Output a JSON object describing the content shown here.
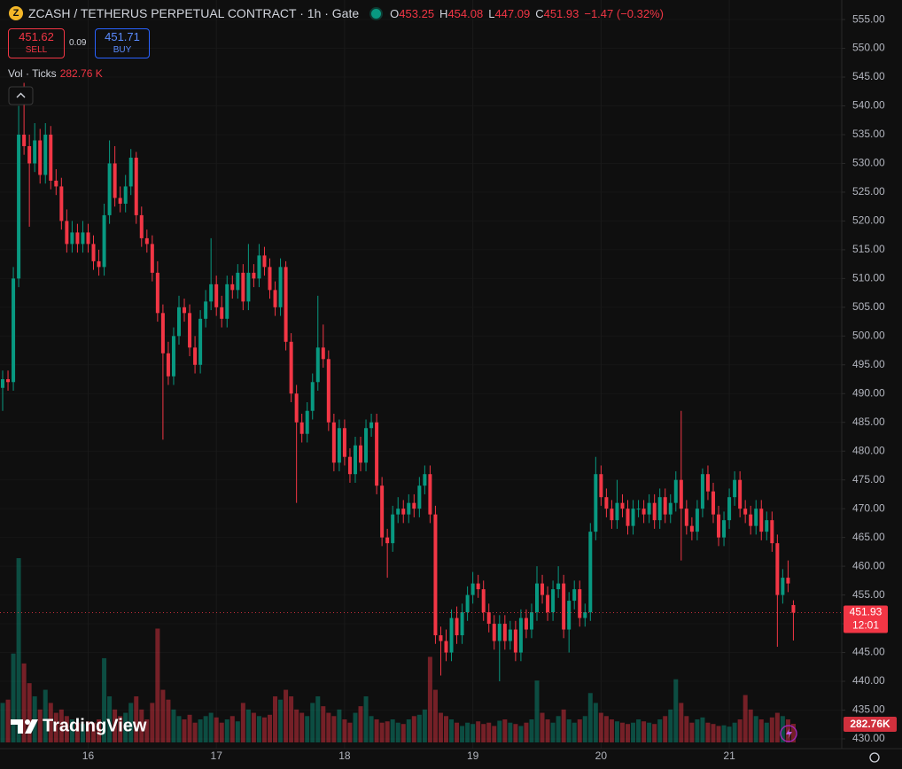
{
  "chart_data": {
    "type": "candlestick",
    "title": "ZCASH / TETHERUS PERPETUAL CONTRACT · 1h · Gate",
    "ohlc_labels": [
      "O",
      "H",
      "L",
      "C"
    ],
    "change": "−1.47 (−0.32%)",
    "volume_title": "Vol · Ticks",
    "volume_label": "282.76 K",
    "volume_tag": "282.76K",
    "countdown": "12:01",
    "up_color": "#089981",
    "down_color": "#f23645",
    "grid": true,
    "categories": [
      null,
      null,
      null,
      null,
      null,
      null,
      null,
      null,
      null,
      null,
      null,
      null,
      null,
      null,
      null,
      null,
      "16",
      null,
      null,
      null,
      null,
      null,
      null,
      null,
      null,
      null,
      null,
      null,
      null,
      null,
      null,
      null,
      null,
      null,
      null,
      null,
      null,
      null,
      null,
      null,
      "17",
      null,
      null,
      null,
      null,
      null,
      null,
      null,
      null,
      null,
      null,
      null,
      null,
      null,
      null,
      null,
      null,
      null,
      null,
      null,
      null,
      null,
      null,
      null,
      "18",
      null,
      null,
      null,
      null,
      null,
      null,
      null,
      null,
      null,
      null,
      null,
      null,
      null,
      null,
      null,
      null,
      null,
      null,
      null,
      null,
      null,
      null,
      null,
      "19",
      null,
      null,
      null,
      null,
      null,
      null,
      null,
      null,
      null,
      null,
      null,
      null,
      null,
      null,
      null,
      null,
      null,
      null,
      null,
      null,
      null,
      null,
      null,
      "20",
      null,
      null,
      null,
      null,
      null,
      null,
      null,
      null,
      null,
      null,
      null,
      null,
      null,
      null,
      null,
      null,
      null,
      null,
      null,
      null,
      null,
      null,
      null,
      "21",
      null,
      null,
      null,
      null,
      null,
      null,
      null,
      null,
      null,
      null,
      null,
      null
    ],
    "open": [
      491,
      492.5,
      492,
      510,
      535,
      533,
      530,
      534,
      528,
      535,
      527,
      526,
      520,
      516,
      518,
      516,
      518,
      516,
      513,
      512,
      521,
      530,
      524,
      523,
      526,
      531,
      521,
      517,
      516,
      511,
      504,
      497,
      493,
      500,
      505,
      504,
      498,
      495,
      503,
      506,
      509,
      505,
      503,
      509,
      508,
      511,
      506,
      511,
      510,
      514,
      512,
      508,
      505,
      512,
      499,
      490,
      485,
      483,
      487,
      492,
      498,
      496,
      485,
      478,
      484,
      479,
      476,
      481,
      478,
      484,
      485,
      474,
      465,
      464,
      469,
      470,
      469,
      471,
      470,
      474,
      476,
      469,
      448,
      447,
      445,
      451,
      448,
      452,
      455,
      457,
      456,
      452,
      450,
      447,
      450,
      447,
      449,
      445,
      451,
      449,
      452,
      457,
      455,
      452,
      456,
      457,
      449,
      454,
      456,
      451,
      452,
      466,
      476,
      472,
      470,
      468,
      471,
      470,
      467,
      470,
      470,
      469,
      471,
      468,
      472,
      469,
      471,
      475,
      470,
      467,
      466,
      470,
      476,
      473,
      469,
      465,
      468,
      472,
      475,
      470,
      469,
      467,
      470,
      466,
      468,
      464,
      455,
      458,
      453.25
    ],
    "high": [
      494,
      494,
      512,
      540,
      544,
      535,
      537,
      536,
      537,
      536.5,
      529,
      527.5,
      522,
      520,
      519.5,
      520,
      519.5,
      517.5,
      515,
      523,
      534,
      533,
      526,
      528,
      532.5,
      532,
      522.5,
      518.5,
      517.5,
      513,
      505.5,
      499,
      501.5,
      507,
      506.5,
      505.5,
      500,
      504.5,
      508,
      517,
      510.5,
      507,
      510.5,
      510.5,
      512.5,
      512.5,
      516,
      512.5,
      516,
      515.5,
      513.5,
      509.5,
      513.5,
      513,
      500.5,
      491.5,
      486.5,
      488.5,
      493.5,
      507,
      502,
      497.5,
      486.5,
      485.5,
      485.5,
      480.5,
      482.5,
      482.5,
      485.5,
      486.5,
      486.5,
      475.5,
      466.5,
      470.5,
      472,
      471.5,
      472.5,
      472.5,
      475.5,
      477.5,
      477.5,
      470.5,
      449.5,
      449,
      452.5,
      453,
      453.5,
      456.5,
      459,
      458.5,
      457.5,
      453.5,
      451.5,
      451.5,
      451.5,
      450.5,
      450.5,
      452.5,
      452.5,
      453.5,
      460,
      458.5,
      456.5,
      457.5,
      460,
      458.5,
      455.5,
      457.5,
      457.5,
      453.5,
      467.5,
      479,
      477.5,
      473.5,
      471.5,
      475,
      472.5,
      471.5,
      471.5,
      471.5,
      471.5,
      472.5,
      472.5,
      473.5,
      473.5,
      472.5,
      476.5,
      487,
      471.5,
      468.5,
      471.5,
      477,
      477.5,
      474.5,
      470.5,
      469.5,
      473.5,
      476.5,
      476.5,
      471.5,
      470.5,
      471.5,
      471.5,
      469.5,
      469.5,
      465.5,
      459.5,
      461,
      454.08
    ],
    "low": [
      487,
      490.5,
      490.5,
      508.5,
      531.5,
      519,
      528.5,
      526.5,
      526.5,
      525.5,
      524.5,
      518.5,
      514.5,
      514.5,
      514.5,
      514.5,
      514.5,
      511.5,
      510.5,
      510.5,
      519.5,
      522.5,
      521.5,
      521.5,
      524.5,
      519.5,
      515.5,
      514.5,
      509.5,
      502.5,
      482,
      491.5,
      491.5,
      498.5,
      502.5,
      496.5,
      493.5,
      493.5,
      501.5,
      504.5,
      503.5,
      501.5,
      501.5,
      506.5,
      506.5,
      504.5,
      504.5,
      508.5,
      508.5,
      510.5,
      506.5,
      503.5,
      503.5,
      497.5,
      488.5,
      471,
      481.5,
      481.5,
      485.5,
      490.5,
      494.5,
      483.5,
      476.5,
      476.5,
      477.5,
      474.5,
      474.5,
      476.5,
      476.5,
      482.5,
      472.5,
      463.5,
      458,
      462.5,
      467.5,
      467.5,
      467.5,
      468.5,
      468.5,
      472.5,
      467.5,
      446.5,
      441,
      443.5,
      443.5,
      446.5,
      446.5,
      450.5,
      453.5,
      454.5,
      450.5,
      448.5,
      445.5,
      440,
      445.5,
      445.5,
      443.5,
      443.5,
      447.5,
      447.5,
      450.5,
      453.5,
      450.5,
      450.5,
      454.5,
      447.5,
      445,
      452.5,
      449.5,
      449.5,
      450.5,
      464.5,
      470.5,
      468.5,
      466.5,
      466.5,
      468.5,
      465.5,
      465.5,
      468.5,
      467.5,
      467.5,
      466.5,
      466.5,
      467.5,
      467.5,
      469.5,
      461,
      465.5,
      464.5,
      464.5,
      468.5,
      471.5,
      467.5,
      463.5,
      463.5,
      466.5,
      470.5,
      468.5,
      467.5,
      465.5,
      465.5,
      464.5,
      464.5,
      462.5,
      446,
      453.5,
      455.5,
      447.09
    ],
    "close": [
      492.5,
      492,
      510,
      535,
      533,
      530,
      534,
      528,
      535,
      527,
      526,
      520,
      516,
      518,
      516,
      518,
      516,
      513,
      512,
      521,
      530,
      524,
      523,
      526,
      531,
      521,
      517,
      516,
      511,
      504,
      497,
      493,
      500,
      505,
      504,
      498,
      495,
      503,
      506,
      509,
      505,
      503,
      509,
      508,
      511,
      506,
      511,
      510,
      514,
      512,
      508,
      505,
      512,
      499,
      490,
      485,
      483,
      487,
      492,
      498,
      496,
      485,
      478,
      484,
      479,
      476,
      481,
      478,
      484,
      485,
      474,
      465,
      464,
      469,
      470,
      469,
      471,
      470,
      474,
      476,
      469,
      448,
      447,
      445,
      451,
      448,
      452,
      455,
      457,
      456,
      452,
      450,
      447,
      450,
      447,
      449,
      445,
      451,
      449,
      452,
      457,
      455,
      452,
      456,
      457,
      449,
      454,
      456,
      451,
      452,
      466,
      476,
      472,
      470,
      468,
      471,
      470,
      467,
      470,
      470,
      469,
      471,
      468,
      472,
      469,
      471,
      475,
      470,
      467,
      466,
      470,
      476,
      473,
      469,
      465,
      468,
      472,
      475,
      470,
      469,
      467,
      470,
      466,
      468,
      464,
      455,
      458,
      457,
      451.93
    ],
    "volume": [
      600,
      650,
      1350,
      2800,
      1200,
      900,
      700,
      500,
      800,
      600,
      450,
      500,
      400,
      350,
      300,
      280,
      320,
      300,
      350,
      1280,
      700,
      500,
      400,
      450,
      600,
      700,
      500,
      350,
      600,
      1730,
      800,
      650,
      500,
      400,
      350,
      420,
      300,
      350,
      400,
      450,
      380,
      300,
      350,
      400,
      320,
      600,
      500,
      450,
      400,
      380,
      420,
      700,
      650,
      800,
      700,
      500,
      450,
      400,
      600,
      700,
      550,
      450,
      400,
      500,
      350,
      300,
      450,
      550,
      700,
      400,
      350,
      300,
      320,
      350,
      300,
      280,
      350,
      400,
      420,
      500,
      1300,
      800,
      450,
      400,
      350,
      300,
      250,
      300,
      280,
      320,
      280,
      300,
      250,
      330,
      350,
      300,
      280,
      250,
      300,
      350,
      940,
      450,
      350,
      300,
      400,
      500,
      350,
      300,
      350,
      400,
      750,
      600,
      450,
      400,
      350,
      320,
      300,
      280,
      300,
      350,
      320,
      300,
      280,
      350,
      400,
      500,
      960,
      600,
      400,
      300,
      350,
      380,
      300,
      280,
      250,
      260,
      240,
      300,
      350,
      720,
      500,
      400,
      350,
      300,
      380,
      450,
      400,
      350,
      282.76
    ],
    "ylim": [
      428.3,
      558.4
    ],
    "yticks": [
      {
        "value": 430,
        "label": "430.00"
      },
      {
        "value": 435,
        "label": "435.00"
      },
      {
        "value": 440,
        "label": "440.00"
      },
      {
        "value": 445,
        "label": "445.00"
      },
      {
        "value": 450,
        "label": "450.00"
      },
      {
        "value": 455,
        "label": "455.00"
      },
      {
        "value": 460,
        "label": "460.00"
      },
      {
        "value": 465,
        "label": "465.00"
      },
      {
        "value": 470,
        "label": "470.00"
      },
      {
        "value": 475,
        "label": "475.00"
      },
      {
        "value": 480,
        "label": "480.00"
      },
      {
        "value": 485,
        "label": "485.00"
      },
      {
        "value": 490,
        "label": "490.00"
      },
      {
        "value": 495,
        "label": "495.00"
      },
      {
        "value": 500,
        "label": "500.00"
      },
      {
        "value": 505,
        "label": "505.00"
      },
      {
        "value": 510,
        "label": "510.00"
      },
      {
        "value": 515,
        "label": "515.00"
      },
      {
        "value": 520,
        "label": "520.00"
      },
      {
        "value": 525,
        "label": "525.00"
      },
      {
        "value": 530,
        "label": "530.00"
      },
      {
        "value": 535,
        "label": "535.00"
      },
      {
        "value": 540,
        "label": "540.00"
      },
      {
        "value": 545,
        "label": "545.00"
      },
      {
        "value": 550,
        "label": "550.00"
      },
      {
        "value": 555,
        "label": "555.00"
      }
    ]
  },
  "trade": {
    "sell_price": 451.62,
    "sell_label": "SELL",
    "spread": 0.09,
    "buy_price": 451.71,
    "buy_label": "BUY"
  },
  "brand": "TradingView"
}
